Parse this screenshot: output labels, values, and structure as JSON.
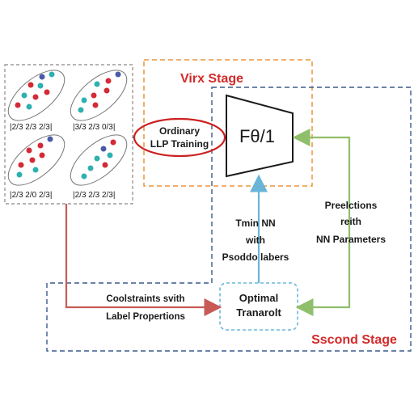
{
  "stages": {
    "first_title": "Virx Stage",
    "second_title": "Sscond Stage",
    "first_color": "#e8963a",
    "second_color": "#3a5a8c",
    "title_color": "#d42a2a"
  },
  "bags": [
    {
      "label": "|2/3  2/3  2/3|"
    },
    {
      "label": "|3/3  2/3  0/3|"
    },
    {
      "label": "|2/3  2/0  2/3|"
    },
    {
      "label": "|2/3  2/3  2/3|"
    }
  ],
  "ordinary_llp": {
    "line1": "Ordinary",
    "line2": "LLP Training",
    "ring_color": "#cc2020"
  },
  "network": {
    "label": "Fθ/1"
  },
  "train_nn": {
    "line1": "Tmin NN",
    "line2": "with",
    "line3": "Psoddo labers"
  },
  "predictions": {
    "line1": "Preelctions",
    "line2": "reith",
    "line3": "NN Parameters"
  },
  "constraints": {
    "line1": "Coolstraints svith",
    "line2": "Label Propertions"
  },
  "optimal_transport": {
    "line1": "Optimal",
    "line2": "Tranarolt"
  },
  "colors": {
    "red_dot": "#d42a35",
    "teal_dot": "#2fb0b0",
    "navy_dot": "#4a5aa8",
    "arrow_red": "#c85a55",
    "arrow_blue": "#6ab4d8",
    "arrow_green": "#8fbf6a",
    "ot_border": "#6ab8dc"
  }
}
